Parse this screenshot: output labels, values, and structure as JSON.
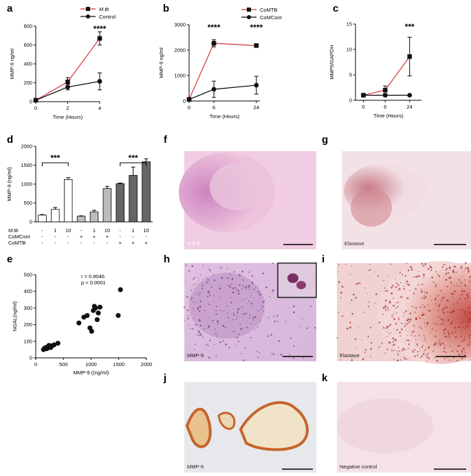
{
  "panels": {
    "a": {
      "letter": "a"
    },
    "b": {
      "letter": "b"
    },
    "c": {
      "letter": "c"
    },
    "d": {
      "letter": "d"
    },
    "e": {
      "letter": "e"
    },
    "f": {
      "letter": "f",
      "caption": "H & E"
    },
    "g": {
      "letter": "g",
      "caption": "Elastase"
    },
    "h": {
      "letter": "h",
      "caption": "MMP-9"
    },
    "i": {
      "letter": "i",
      "caption": "Elastase"
    },
    "j": {
      "letter": "j",
      "caption": "MMP-9"
    },
    "k": {
      "letter": "k",
      "caption": "Negative control"
    }
  },
  "chart_data": [
    {
      "id": "a",
      "type": "line",
      "xlabel": "Time (Hours)",
      "ylabel": "MMP-9 ng/ml",
      "xlim": [
        0,
        4
      ],
      "ylim": [
        0,
        800
      ],
      "xticks": [
        "0",
        "2",
        "4"
      ],
      "yticks": [
        "0",
        "200",
        "400",
        "600",
        "800"
      ],
      "x": [
        0,
        2,
        4
      ],
      "series": [
        {
          "name": "M.tb",
          "color": "#d9303a",
          "marker": "square",
          "values": [
            15,
            210,
            670
          ],
          "err": [
            5,
            45,
            70
          ]
        },
        {
          "name": "Control",
          "color": "#000000",
          "marker": "circle",
          "values": [
            15,
            155,
            215
          ],
          "err": [
            5,
            30,
            90
          ]
        }
      ],
      "annotations": [
        {
          "text": "****",
          "x": 4
        }
      ]
    },
    {
      "id": "b",
      "type": "line",
      "xlabel": "Time (Hours)",
      "ylabel": "MMP-9 ng/ml",
      "xlim": [
        0,
        24
      ],
      "ylim": [
        0,
        3000
      ],
      "xticks": [
        "0",
        "6",
        "24"
      ],
      "yticks": [
        "0",
        "1000",
        "2000",
        "3000"
      ],
      "x": [
        0,
        6,
        24
      ],
      "series": [
        {
          "name": "CoMTB",
          "color": "#d9303a",
          "marker": "square",
          "values": [
            60,
            2270,
            2180
          ],
          "err": [
            20,
            140,
            70
          ]
        },
        {
          "name": "CoMCont",
          "color": "#000000",
          "marker": "circle",
          "values": [
            60,
            460,
            620
          ],
          "err": [
            20,
            320,
            350
          ]
        }
      ],
      "annotations": [
        {
          "text": "****",
          "x": 6
        },
        {
          "text": "****",
          "x": 24
        }
      ]
    },
    {
      "id": "c",
      "type": "line",
      "xlabel": "Time (Hours)",
      "ylabel": "MMP9/GAPDH",
      "xlim": [
        0,
        24
      ],
      "ylim": [
        0,
        15
      ],
      "xticks": [
        "0",
        "6",
        "24"
      ],
      "yticks": [
        "0",
        "5",
        "10",
        "15"
      ],
      "x": [
        0,
        6,
        24
      ],
      "series": [
        {
          "name": "",
          "color": "#d9303a",
          "marker": "square",
          "values": [
            1,
            2,
            8.6
          ],
          "err": [
            0.1,
            0.8,
            3.8
          ]
        },
        {
          "name": "",
          "color": "#000000",
          "marker": "circle",
          "values": [
            1,
            1,
            1
          ],
          "err": [
            0.05,
            0.3,
            0.05
          ]
        }
      ],
      "annotations": [
        {
          "text": "***",
          "x": 24
        }
      ]
    },
    {
      "id": "d",
      "type": "bar",
      "ylabel": "MMP-9 (ng/ml)",
      "ylim": [
        0,
        2000
      ],
      "yticks": [
        "0",
        "500",
        "1000",
        "1500",
        "2000"
      ],
      "values": [
        180,
        330,
        1120,
        150,
        260,
        880,
        1010,
        1230,
        1590
      ],
      "err": [
        15,
        50,
        50,
        10,
        45,
        60,
        20,
        220,
        80
      ],
      "fills": [
        "#ffffff",
        "#ffffff",
        "#ffffff",
        "#bcbcbc",
        "#bcbcbc",
        "#bcbcbc",
        "#666666",
        "#666666",
        "#666666"
      ],
      "condition_rows": [
        {
          "label": "M.tb",
          "cells": [
            "-",
            "1",
            "10",
            "-",
            "1",
            "10",
            "-",
            "1",
            "10"
          ]
        },
        {
          "label": "CoMCont",
          "cells": [
            "-",
            "-",
            "-",
            "+",
            "+",
            "+",
            "-",
            "-",
            "-"
          ]
        },
        {
          "label": "CoMTB",
          "cells": [
            "-",
            "-",
            "-",
            "-",
            "-",
            "-",
            "+",
            "+",
            "+"
          ]
        }
      ],
      "annotations": [
        {
          "text": "***",
          "from": 1,
          "to": 3
        },
        {
          "text": "***",
          "from": 7,
          "to": 9
        }
      ]
    },
    {
      "id": "e",
      "type": "scatter",
      "xlabel": "MMP-9 ((ng/ml)",
      "ylabel": "NGAL(ng/ml)",
      "xlim": [
        0,
        2000
      ],
      "ylim": [
        0,
        500
      ],
      "xticks": [
        "0",
        "500",
        "1000",
        "1500",
        "2000"
      ],
      "yticks": [
        "0",
        "100",
        "200",
        "300",
        "400",
        "500"
      ],
      "stats": [
        "r = 0.9046",
        "p < 0.0001"
      ],
      "points": [
        [
          140,
          50
        ],
        [
          160,
          58
        ],
        [
          180,
          62
        ],
        [
          200,
          55
        ],
        [
          220,
          68
        ],
        [
          240,
          75
        ],
        [
          270,
          62
        ],
        [
          290,
          72
        ],
        [
          330,
          78
        ],
        [
          400,
          88
        ],
        [
          780,
          210
        ],
        [
          870,
          245
        ],
        [
          930,
          255
        ],
        [
          980,
          180
        ],
        [
          1010,
          160
        ],
        [
          1040,
          285
        ],
        [
          1060,
          310
        ],
        [
          1080,
          300
        ],
        [
          1110,
          230
        ],
        [
          1130,
          270
        ],
        [
          1160,
          305
        ],
        [
          1490,
          255
        ],
        [
          1530,
          410
        ]
      ]
    }
  ]
}
